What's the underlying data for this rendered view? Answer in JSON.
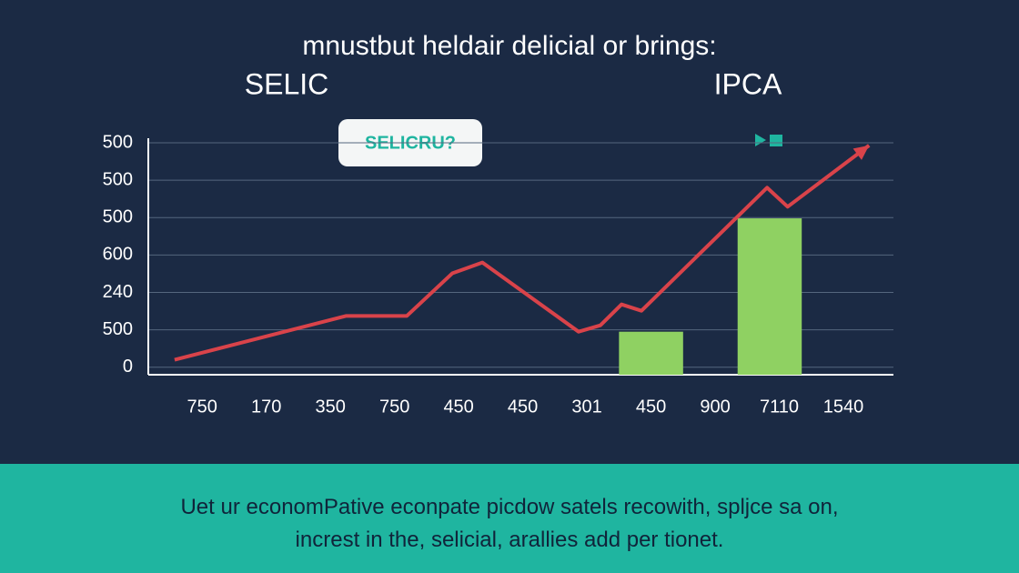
{
  "chart_data": {
    "type": "combo",
    "title": "mnustbut heldair delicial or brings:",
    "annotation": "SELICRU?",
    "categories": [
      "750",
      "170",
      "350",
      "750",
      "450",
      "450",
      "301",
      "450",
      "900",
      "7110",
      "1540"
    ],
    "xlim": [
      -0.84,
      10.78
    ],
    "ylim": [
      -0.2,
      6
    ],
    "yticks": [
      {
        "value": 0,
        "label": "0"
      },
      {
        "value": 1,
        "label": "500"
      },
      {
        "value": 2,
        "label": "240"
      },
      {
        "value": 3,
        "label": "600"
      },
      {
        "value": 4,
        "label": "500"
      },
      {
        "value": 5,
        "label": "500"
      },
      {
        "value": 6,
        "label": "500"
      }
    ],
    "grid": true,
    "series": [
      {
        "name": "SELIC",
        "type": "line",
        "color": "#d9434a",
        "x": [
          -0.43,
          2.24,
          3.19,
          3.9,
          4.37,
          5.87,
          6.21,
          6.54,
          6.85,
          8.81,
          9.13,
          10.4
        ],
        "values": [
          0.2,
          1.37,
          1.37,
          2.51,
          2.8,
          0.95,
          1.12,
          1.68,
          1.51,
          4.8,
          4.29,
          5.93
        ]
      },
      {
        "name": "IPCA",
        "type": "bar",
        "color": "#8fd162",
        "x": [
          7.0,
          8.85
        ],
        "values": [
          0.95,
          3.98
        ]
      }
    ]
  },
  "footer": [
    "Uet ur economPative econpate picdow satels recowith, spljce sa on,",
    "increst in the, selicial, arallies add per tionet."
  ]
}
